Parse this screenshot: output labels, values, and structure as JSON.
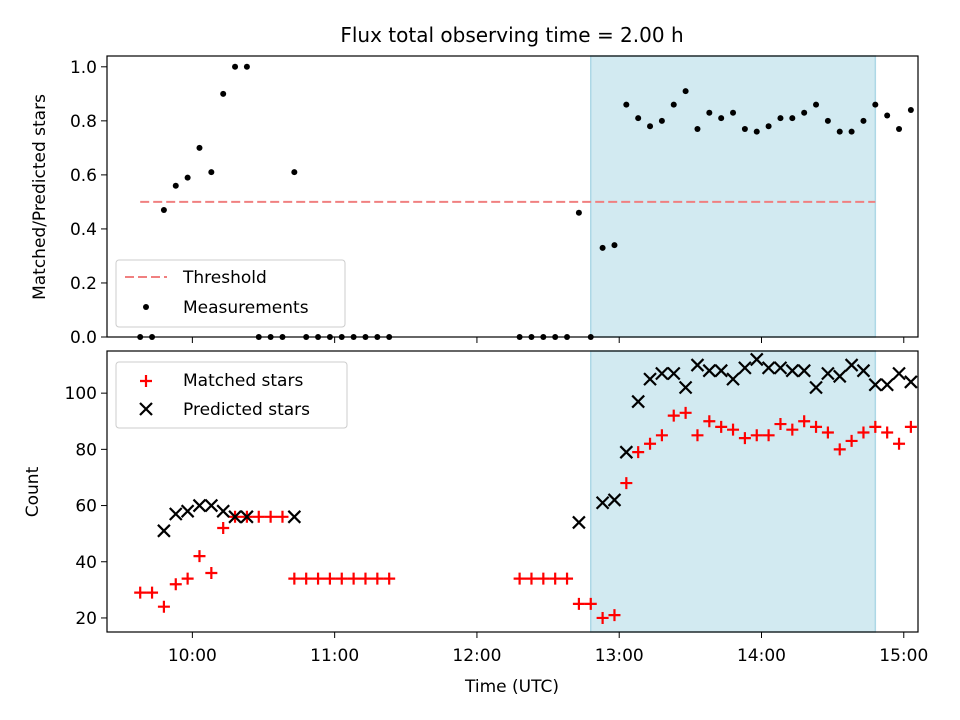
{
  "title": "Flux total observing time = 2.00 h",
  "colors": {
    "highlight": "#add8e6",
    "threshold": "#f08080",
    "measurement": "#000000",
    "matched": "#ff0000",
    "predicted": "#000000"
  },
  "chart_data": [
    {
      "type": "scatter",
      "xlabel": "",
      "ylabel": "Matched/Predicted stars",
      "xlim": [
        "09:24",
        "15:06"
      ],
      "ylim": [
        0,
        1.04
      ],
      "yticks": [
        "0.0",
        "0.2",
        "0.4",
        "0.6",
        "0.8",
        "1.0"
      ],
      "highlight_span": [
        "12:48",
        "14:48"
      ],
      "threshold": {
        "name": "Threshold",
        "value": 0.5,
        "x": [
          "09:38",
          "14:48"
        ]
      },
      "legend_position": "lower-left",
      "legend": [
        "Threshold",
        "Measurements"
      ],
      "series": [
        {
          "name": "Measurements",
          "points": [
            [
              "09:38",
              0
            ],
            [
              "09:43",
              0
            ],
            [
              "09:48",
              0.47
            ],
            [
              "09:53",
              0.56
            ],
            [
              "09:58",
              0.59
            ],
            [
              "10:03",
              0.7
            ],
            [
              "10:08",
              0.61
            ],
            [
              "10:13",
              0.9
            ],
            [
              "10:18",
              1.0
            ],
            [
              "10:23",
              1.0
            ],
            [
              "10:28",
              0
            ],
            [
              "10:33",
              0
            ],
            [
              "10:38",
              0
            ],
            [
              "10:43",
              0.61
            ],
            [
              "10:48",
              0
            ],
            [
              "10:53",
              0
            ],
            [
              "10:58",
              0
            ],
            [
              "11:03",
              0
            ],
            [
              "11:08",
              0
            ],
            [
              "11:13",
              0
            ],
            [
              "11:18",
              0
            ],
            [
              "11:23",
              0
            ],
            [
              "12:18",
              0
            ],
            [
              "12:23",
              0
            ],
            [
              "12:28",
              0
            ],
            [
              "12:33",
              0
            ],
            [
              "12:38",
              0
            ],
            [
              "12:43",
              0.46
            ],
            [
              "12:48",
              0
            ],
            [
              "12:53",
              0.33
            ],
            [
              "12:58",
              0.34
            ],
            [
              "13:03",
              0.86
            ],
            [
              "13:08",
              0.81
            ],
            [
              "13:13",
              0.78
            ],
            [
              "13:18",
              0.8
            ],
            [
              "13:23",
              0.86
            ],
            [
              "13:28",
              0.91
            ],
            [
              "13:33",
              0.77
            ],
            [
              "13:38",
              0.83
            ],
            [
              "13:43",
              0.81
            ],
            [
              "13:48",
              0.83
            ],
            [
              "13:53",
              0.77
            ],
            [
              "13:58",
              0.76
            ],
            [
              "14:03",
              0.78
            ],
            [
              "14:08",
              0.81
            ],
            [
              "14:13",
              0.81
            ],
            [
              "14:18",
              0.83
            ],
            [
              "14:23",
              0.86
            ],
            [
              "14:28",
              0.8
            ],
            [
              "14:33",
              0.76
            ],
            [
              "14:38",
              0.76
            ],
            [
              "14:43",
              0.8
            ],
            [
              "14:48",
              0.86
            ],
            [
              "14:53",
              0.82
            ],
            [
              "14:58",
              0.77
            ],
            [
              "15:03",
              0.84
            ]
          ]
        }
      ]
    },
    {
      "type": "scatter",
      "xlabel": "Time (UTC)",
      "ylabel": "Count",
      "xlim": [
        "09:24",
        "15:06"
      ],
      "ylim": [
        15,
        115
      ],
      "yticks": [
        "20",
        "40",
        "60",
        "80",
        "100"
      ],
      "xticks": [
        "10:00",
        "11:00",
        "12:00",
        "13:00",
        "14:00",
        "15:00"
      ],
      "highlight_span": [
        "12:48",
        "14:48"
      ],
      "legend_position": "upper-left",
      "legend": [
        "Matched stars",
        "Predicted stars"
      ],
      "series": [
        {
          "name": "Matched stars",
          "marker": "+",
          "points": [
            [
              "09:38",
              29
            ],
            [
              "09:43",
              29
            ],
            [
              "09:48",
              24
            ],
            [
              "09:53",
              32
            ],
            [
              "09:58",
              34
            ],
            [
              "10:03",
              42
            ],
            [
              "10:08",
              36
            ],
            [
              "10:13",
              52
            ],
            [
              "10:18",
              56
            ],
            [
              "10:23",
              56
            ],
            [
              "10:28",
              56
            ],
            [
              "10:33",
              56
            ],
            [
              "10:38",
              56
            ],
            [
              "10:43",
              34
            ],
            [
              "10:48",
              34
            ],
            [
              "10:53",
              34
            ],
            [
              "10:58",
              34
            ],
            [
              "11:03",
              34
            ],
            [
              "11:08",
              34
            ],
            [
              "11:13",
              34
            ],
            [
              "11:18",
              34
            ],
            [
              "11:23",
              34
            ],
            [
              "12:18",
              34
            ],
            [
              "12:23",
              34
            ],
            [
              "12:28",
              34
            ],
            [
              "12:33",
              34
            ],
            [
              "12:38",
              34
            ],
            [
              "12:43",
              25
            ],
            [
              "12:48",
              25
            ],
            [
              "12:53",
              20
            ],
            [
              "12:58",
              21
            ],
            [
              "13:03",
              68
            ],
            [
              "13:08",
              79
            ],
            [
              "13:13",
              82
            ],
            [
              "13:18",
              85
            ],
            [
              "13:23",
              92
            ],
            [
              "13:28",
              93
            ],
            [
              "13:33",
              85
            ],
            [
              "13:38",
              90
            ],
            [
              "13:43",
              88
            ],
            [
              "13:48",
              87
            ],
            [
              "13:53",
              84
            ],
            [
              "13:58",
              85
            ],
            [
              "14:03",
              85
            ],
            [
              "14:08",
              89
            ],
            [
              "14:13",
              87
            ],
            [
              "14:18",
              90
            ],
            [
              "14:23",
              88
            ],
            [
              "14:28",
              86
            ],
            [
              "14:33",
              80
            ],
            [
              "14:38",
              83
            ],
            [
              "14:43",
              86
            ],
            [
              "14:48",
              88
            ],
            [
              "14:53",
              86
            ],
            [
              "14:58",
              82
            ],
            [
              "15:03",
              88
            ]
          ]
        },
        {
          "name": "Predicted stars",
          "marker": "x",
          "points": [
            [
              "09:48",
              51
            ],
            [
              "09:53",
              57
            ],
            [
              "09:58",
              58
            ],
            [
              "10:03",
              60
            ],
            [
              "10:08",
              60
            ],
            [
              "10:13",
              58
            ],
            [
              "10:18",
              56
            ],
            [
              "10:23",
              56
            ],
            [
              "10:43",
              56
            ],
            [
              "12:43",
              54
            ],
            [
              "12:53",
              61
            ],
            [
              "12:58",
              62
            ],
            [
              "13:03",
              79
            ],
            [
              "13:08",
              97
            ],
            [
              "13:13",
              105
            ],
            [
              "13:18",
              107
            ],
            [
              "13:23",
              107
            ],
            [
              "13:28",
              102
            ],
            [
              "13:33",
              110
            ],
            [
              "13:38",
              108
            ],
            [
              "13:43",
              108
            ],
            [
              "13:48",
              105
            ],
            [
              "13:53",
              109
            ],
            [
              "13:58",
              112
            ],
            [
              "14:03",
              109
            ],
            [
              "14:08",
              109
            ],
            [
              "14:13",
              108
            ],
            [
              "14:18",
              108
            ],
            [
              "14:23",
              102
            ],
            [
              "14:28",
              107
            ],
            [
              "14:33",
              106
            ],
            [
              "14:38",
              110
            ],
            [
              "14:43",
              108
            ],
            [
              "14:48",
              103
            ],
            [
              "14:53",
              103
            ],
            [
              "14:58",
              107
            ],
            [
              "15:03",
              104
            ]
          ]
        }
      ]
    }
  ]
}
